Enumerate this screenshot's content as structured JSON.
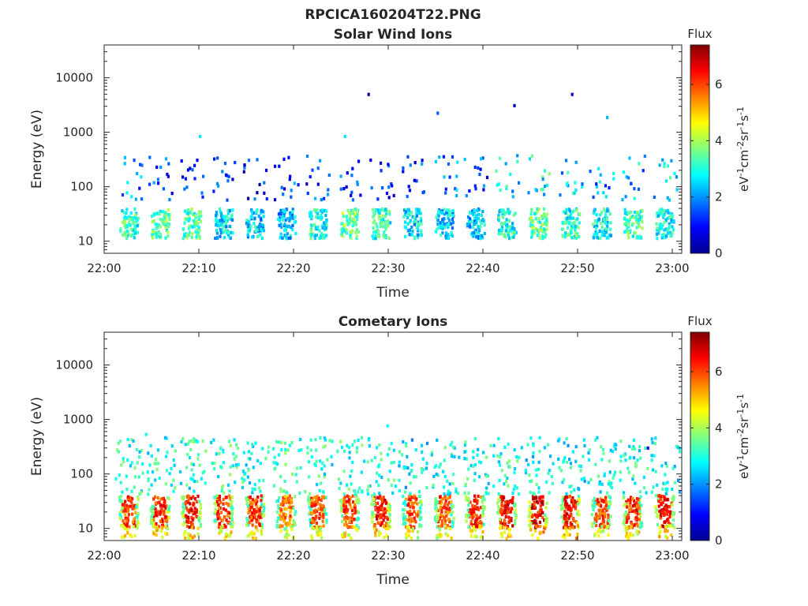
{
  "figure_title": "RPCICA160204T22.PNG",
  "chart_data": [
    {
      "type": "heatmap",
      "title": "Solar Wind Ions",
      "xlabel": "Time",
      "ylabel": "Energy (eV)",
      "x_ticks": [
        "22:00",
        "22:10",
        "22:20",
        "22:30",
        "22:40",
        "22:50",
        "23:00"
      ],
      "x_range": [
        "22:00",
        "23:01"
      ],
      "y_scale": "log",
      "y_ticks": [
        10,
        100,
        1000,
        10000
      ],
      "y_range": [
        6,
        40000
      ],
      "colorbar": {
        "title": "Flux",
        "label": "eV-1cm-2sr-1s-1",
        "ticks": [
          0,
          2,
          4,
          6
        ],
        "range": [
          0,
          7.4
        ],
        "colormap": "jet"
      },
      "colors": {
        "background": "#ffffff",
        "axis": "#262626"
      },
      "bursts": [
        {
          "t": "22:02.5",
          "low_flux": 3.1,
          "high_flux": 1.9
        },
        {
          "t": "22:05.8",
          "low_flux": 3.4,
          "high_flux": 1.7
        },
        {
          "t": "22:09.1",
          "low_flux": 3.2,
          "high_flux": 1.6
        },
        {
          "t": "22:12.5",
          "low_flux": 2.6,
          "high_flux": 1.4
        },
        {
          "t": "22:15.8",
          "low_flux": 2.5,
          "high_flux": 1.2
        },
        {
          "t": "22:19.1",
          "low_flux": 2.2,
          "high_flux": 1.3
        },
        {
          "t": "22:22.4",
          "low_flux": 3.0,
          "high_flux": 1.4
        },
        {
          "t": "22:25.8",
          "low_flux": 3.5,
          "high_flux": 1.5
        },
        {
          "t": "22:29.1",
          "low_flux": 3.1,
          "high_flux": 1.5
        },
        {
          "t": "22:32.4",
          "low_flux": 2.6,
          "high_flux": 1.3
        },
        {
          "t": "22:35.8",
          "low_flux": 2.5,
          "high_flux": 2.1
        },
        {
          "t": "22:39.1",
          "low_flux": 2.4,
          "high_flux": 1.6
        },
        {
          "t": "22:42.4",
          "low_flux": 2.9,
          "high_flux": 2.6
        },
        {
          "t": "22:45.7",
          "low_flux": 3.4,
          "high_flux": 2.8
        },
        {
          "t": "22:49.1",
          "low_flux": 3.0,
          "high_flux": 2.5
        },
        {
          "t": "22:52.4",
          "low_flux": 2.8,
          "high_flux": 2.1
        },
        {
          "t": "22:55.7",
          "low_flux": 3.2,
          "high_flux": 2.2
        },
        {
          "t": "22:59.1",
          "low_flux": 2.9,
          "high_flux": 2.4
        }
      ],
      "sparse_points": [
        {
          "t": "22:10.0",
          "e": 900,
          "flux": 2.6
        },
        {
          "t": "22:27.8",
          "e": 5300,
          "flux": 0.3
        },
        {
          "t": "22:25.3",
          "e": 900,
          "flux": 2.6
        },
        {
          "t": "22:35.1",
          "e": 2400,
          "flux": 1.6
        },
        {
          "t": "22:43.2",
          "e": 3300,
          "flux": 0.3
        },
        {
          "t": "22:49.3",
          "e": 5300,
          "flux": 0.6
        },
        {
          "t": "22:53.0",
          "e": 2000,
          "flux": 2.3
        }
      ]
    },
    {
      "type": "heatmap",
      "title": "Cometary Ions",
      "xlabel": "Time",
      "ylabel": "Energy (eV)",
      "x_ticks": [
        "22:00",
        "22:10",
        "22:20",
        "22:30",
        "22:40",
        "22:50",
        "23:00"
      ],
      "x_range": [
        "22:00",
        "23:01"
      ],
      "y_scale": "log",
      "y_ticks": [
        10,
        100,
        1000,
        10000
      ],
      "y_range": [
        6,
        40000
      ],
      "colorbar": {
        "title": "Flux",
        "label": "eV-1cm-2sr-1s-1",
        "ticks": [
          0,
          2,
          4,
          6
        ],
        "range": [
          0,
          7.4
        ],
        "colormap": "jet"
      },
      "colors": {
        "background": "#ffffff",
        "axis": "#262626"
      },
      "bursts": [
        {
          "t": "22:02.5",
          "core_flux": 6.0,
          "high_flux": 3.0
        },
        {
          "t": "22:05.8",
          "core_flux": 6.2,
          "high_flux": 3.0
        },
        {
          "t": "22:09.1",
          "core_flux": 6.3,
          "high_flux": 3.0
        },
        {
          "t": "22:12.5",
          "core_flux": 6.1,
          "high_flux": 3.1
        },
        {
          "t": "22:15.8",
          "core_flux": 6.0,
          "high_flux": 3.0
        },
        {
          "t": "22:19.1",
          "core_flux": 5.6,
          "high_flux": 3.2
        },
        {
          "t": "22:22.4",
          "core_flux": 5.8,
          "high_flux": 3.0
        },
        {
          "t": "22:25.8",
          "core_flux": 5.9,
          "high_flux": 3.1
        },
        {
          "t": "22:29.1",
          "core_flux": 6.3,
          "high_flux": 3.0
        },
        {
          "t": "22:32.4",
          "core_flux": 5.9,
          "high_flux": 2.7
        },
        {
          "t": "22:35.8",
          "core_flux": 5.8,
          "high_flux": 3.0
        },
        {
          "t": "22:39.1",
          "core_flux": 6.1,
          "high_flux": 3.0
        },
        {
          "t": "22:42.4",
          "core_flux": 6.4,
          "high_flux": 3.1
        },
        {
          "t": "22:45.7",
          "core_flux": 6.5,
          "high_flux": 2.8
        },
        {
          "t": "22:49.1",
          "core_flux": 6.4,
          "high_flux": 2.7
        },
        {
          "t": "22:52.4",
          "core_flux": 6.0,
          "high_flux": 3.0
        },
        {
          "t": "22:55.7",
          "core_flux": 6.1,
          "high_flux": 3.0
        },
        {
          "t": "22:59.1",
          "core_flux": 6.4,
          "high_flux": 2.8
        }
      ],
      "sparse_points": [
        {
          "t": "22:29.8",
          "e": 820,
          "flux": 2.8
        },
        {
          "t": "22:04.3",
          "e": 570,
          "flux": 2.8
        },
        {
          "t": "22:32.4",
          "e": 450,
          "flux": 1.8
        },
        {
          "t": "22:57.3",
          "e": 320,
          "flux": 0.9
        }
      ]
    }
  ]
}
